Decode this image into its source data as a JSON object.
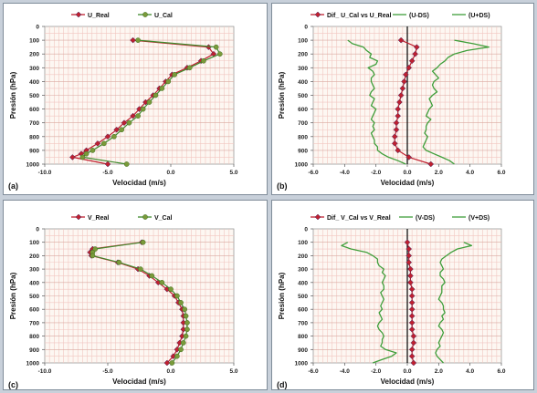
{
  "chart_data": [
    {
      "type": "line",
      "panel_label": "(a)",
      "xlabel": "Velocidad (m/s)",
      "ylabel": "Presión (hPa)",
      "xlim": [
        -10.0,
        5.0
      ],
      "ylim": [
        0,
        1000
      ],
      "y_inverted": true,
      "xticks": [
        "-10.0",
        "-5.0",
        "0.0",
        "5.0"
      ],
      "yticks": [
        "0",
        "100",
        "200",
        "300",
        "400",
        "500",
        "600",
        "700",
        "800",
        "900",
        "1000"
      ],
      "grid": true,
      "legend_position": "top",
      "y": [
        100,
        150,
        200,
        250,
        300,
        350,
        400,
        450,
        500,
        550,
        600,
        650,
        700,
        750,
        800,
        850,
        900,
        925,
        950,
        1000
      ],
      "series": [
        {
          "name": "U_Real",
          "color": "#c0202f",
          "marker": "diamond",
          "x": [
            -3.0,
            3.0,
            3.4,
            2.4,
            1.3,
            0.1,
            -0.4,
            -0.9,
            -1.4,
            -2.0,
            -2.5,
            -3.0,
            -3.7,
            -4.3,
            -5.0,
            -5.8,
            -6.7,
            -7.1,
            -7.8,
            -5.0
          ]
        },
        {
          "name": "U_Cal",
          "color": "#3f8a2c",
          "marker": "circle",
          "x": [
            -2.6,
            3.6,
            3.9,
            2.6,
            1.5,
            0.3,
            -0.2,
            -0.7,
            -1.2,
            -1.7,
            -2.2,
            -2.6,
            -3.3,
            -3.9,
            -4.5,
            -5.3,
            -6.2,
            -6.7,
            -7.0,
            -3.5
          ]
        }
      ]
    },
    {
      "type": "line",
      "panel_label": "(b)",
      "xlabel": "Velocidad (m/s)",
      "ylabel": "Presión (hPa)",
      "xlim": [
        -6.0,
        6.0
      ],
      "ylim": [
        0,
        1000
      ],
      "y_inverted": true,
      "xticks": [
        "-6.0",
        "-4.0",
        "-2.0",
        "0.0",
        "2.0",
        "4.0",
        "6.0"
      ],
      "yticks": [
        "0",
        "100",
        "200",
        "300",
        "400",
        "500",
        "600",
        "700",
        "800",
        "900",
        "1000"
      ],
      "grid": true,
      "legend_position": "top",
      "diff_y": [
        100,
        150,
        200,
        250,
        300,
        350,
        400,
        450,
        500,
        550,
        600,
        650,
        700,
        750,
        800,
        850,
        900,
        950,
        1000
      ],
      "ds_y": [
        100,
        125,
        150,
        175,
        200,
        225,
        250,
        275,
        300,
        325,
        350,
        375,
        400,
        425,
        450,
        475,
        500,
        525,
        550,
        575,
        600,
        625,
        650,
        675,
        700,
        725,
        750,
        775,
        800,
        825,
        850,
        875,
        900,
        925,
        950,
        975,
        1000
      ],
      "series": [
        {
          "name": "Dif_ U_Cal vs U_Real",
          "color": "#c0202f",
          "marker": "diamond",
          "x": [
            -0.4,
            0.6,
            0.5,
            0.3,
            0.1,
            -0.1,
            -0.2,
            -0.3,
            -0.4,
            -0.5,
            -0.6,
            -0.6,
            -0.7,
            -0.7,
            -0.8,
            -0.8,
            -0.6,
            0.1,
            1.5
          ]
        },
        {
          "name": "(U-DS)",
          "color": "#3f9e3a",
          "marker": "none",
          "x": [
            -3.8,
            -3.5,
            -2.8,
            -2.6,
            -2.3,
            -2.4,
            -1.9,
            -2.0,
            -2.5,
            -2.2,
            -2.1,
            -2.3,
            -2.3,
            -2.2,
            -2.1,
            -2.3,
            -2.4,
            -2.1,
            -2.2,
            -2.3,
            -2.0,
            -2.1,
            -2.2,
            -2.3,
            -2.1,
            -2.2,
            -2.1,
            -2.3,
            -2.2,
            -2.1,
            -2.1,
            -1.9,
            -1.9,
            -1.6,
            -1.2,
            -0.6,
            -0.1
          ]
        },
        {
          "name": "(U+DS)",
          "color": "#3f9e3a",
          "marker": "none",
          "x": [
            3.0,
            4.2,
            5.2,
            3.8,
            3.0,
            2.6,
            2.4,
            2.1,
            1.9,
            1.6,
            1.8,
            2.0,
            1.7,
            1.6,
            1.7,
            1.9,
            1.6,
            1.4,
            1.5,
            1.6,
            1.4,
            1.3,
            1.2,
            1.5,
            1.3,
            1.2,
            1.2,
            1.1,
            1.3,
            1.2,
            1.1,
            1.0,
            1.2,
            1.7,
            2.2,
            2.7,
            3.0
          ]
        }
      ]
    },
    {
      "type": "line",
      "panel_label": "(c)",
      "xlabel": "Velocidad (m/s)",
      "ylabel": "Presión (hPa)",
      "xlim": [
        -10.0,
        5.0
      ],
      "ylim": [
        0,
        1000
      ],
      "y_inverted": true,
      "xticks": [
        "-10.0",
        "-5.0",
        "0.0",
        "5.0"
      ],
      "yticks": [
        "0",
        "100",
        "200",
        "300",
        "400",
        "500",
        "600",
        "700",
        "800",
        "900",
        "1000"
      ],
      "grid": true,
      "legend_position": "top",
      "y": [
        100,
        150,
        175,
        200,
        250,
        300,
        350,
        400,
        450,
        500,
        550,
        600,
        650,
        700,
        750,
        800,
        850,
        900,
        950,
        1000
      ],
      "series": [
        {
          "name": "V_Real",
          "color": "#c0202f",
          "marker": "diamond",
          "x": [
            -2.3,
            -6.2,
            -6.4,
            -6.3,
            -4.2,
            -2.6,
            -1.7,
            -1.0,
            -0.3,
            0.3,
            0.6,
            0.9,
            1.0,
            1.0,
            1.0,
            0.9,
            0.7,
            0.5,
            0.2,
            -0.3
          ]
        },
        {
          "name": "V_Cal",
          "color": "#3f8a2c",
          "marker": "circle",
          "x": [
            -2.2,
            -6.0,
            -6.2,
            -6.2,
            -4.1,
            -2.4,
            -1.5,
            -0.7,
            0.0,
            0.5,
            0.8,
            1.1,
            1.2,
            1.3,
            1.3,
            1.2,
            1.0,
            0.8,
            0.5,
            0.1
          ]
        }
      ]
    },
    {
      "type": "line",
      "panel_label": "(d)",
      "xlabel": "Velocidad (m/s)",
      "ylabel": "Presión (hPa)",
      "xlim": [
        -6.0,
        6.0
      ],
      "ylim": [
        0,
        1000
      ],
      "y_inverted": true,
      "xticks": [
        "-6.0",
        "-4.0",
        "-2.0",
        "0.0",
        "2.0",
        "4.0",
        "6.0"
      ],
      "yticks": [
        "0",
        "100",
        "200",
        "300",
        "400",
        "500",
        "600",
        "700",
        "800",
        "900",
        "1000"
      ],
      "grid": true,
      "legend_position": "top",
      "diff_y": [
        100,
        150,
        200,
        250,
        300,
        350,
        400,
        450,
        500,
        550,
        600,
        650,
        700,
        750,
        800,
        850,
        900,
        950,
        1000
      ],
      "ds_y": [
        100,
        125,
        150,
        175,
        200,
        225,
        250,
        275,
        300,
        325,
        350,
        375,
        400,
        425,
        450,
        475,
        500,
        525,
        550,
        575,
        600,
        625,
        650,
        675,
        700,
        725,
        750,
        775,
        800,
        825,
        850,
        875,
        900,
        925,
        950,
        975,
        1000
      ],
      "series": [
        {
          "name": "Dif_ V_Cal vs V_Real",
          "color": "#c0202f",
          "marker": "diamond",
          "x": [
            0.0,
            0.1,
            0.1,
            0.1,
            0.2,
            0.2,
            0.2,
            0.3,
            0.3,
            0.3,
            0.3,
            0.3,
            0.3,
            0.3,
            0.4,
            0.4,
            0.3,
            0.3,
            0.4
          ]
        },
        {
          "name": "(V-DS)",
          "color": "#3f9e3a",
          "marker": "none",
          "x": [
            -3.8,
            -4.2,
            -3.6,
            -2.6,
            -2.2,
            -1.9,
            -1.9,
            -1.8,
            -1.5,
            -1.6,
            -1.4,
            -1.5,
            -1.6,
            -1.5,
            -1.5,
            -1.7,
            -1.6,
            -1.5,
            -1.6,
            -1.7,
            -1.6,
            -1.8,
            -1.7,
            -1.6,
            -1.8,
            -1.9,
            -1.8,
            -1.6,
            -1.5,
            -1.6,
            -1.6,
            -1.7,
            -1.4,
            -0.7,
            -1.0,
            -1.6,
            -2.2
          ]
        },
        {
          "name": "(V+DS)",
          "color": "#3f9e3a",
          "marker": "none",
          "x": [
            3.6,
            4.1,
            3.2,
            2.8,
            2.5,
            2.2,
            2.1,
            2.2,
            2.3,
            2.1,
            2.1,
            2.3,
            2.4,
            2.2,
            2.2,
            2.2,
            2.1,
            2.0,
            2.2,
            2.3,
            2.3,
            2.4,
            2.2,
            2.3,
            2.1,
            2.0,
            2.2,
            2.3,
            2.2,
            2.1,
            2.0,
            2.1,
            1.9,
            1.8,
            1.9,
            2.1,
            2.3
          ]
        }
      ]
    }
  ]
}
